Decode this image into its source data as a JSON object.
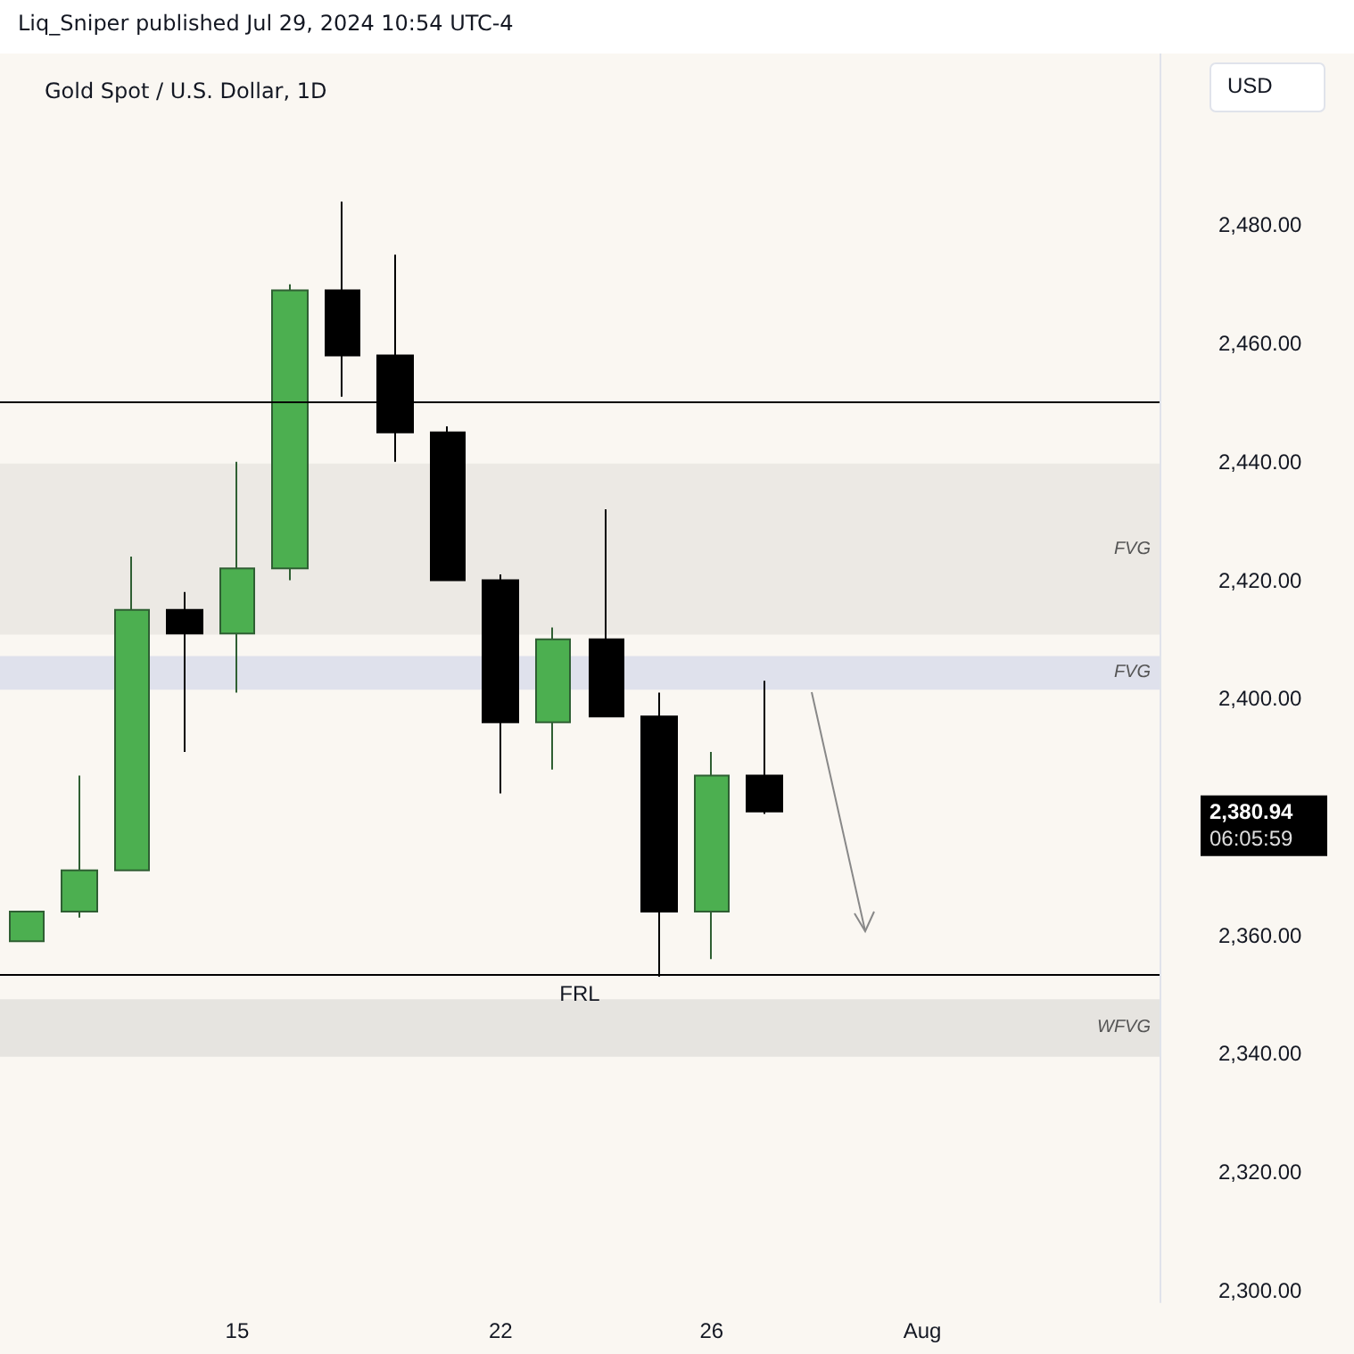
{
  "chart_data": {
    "type": "candlestick",
    "title": "Gold Spot / U.S. Dollar, 1D",
    "categories": [
      null,
      null,
      null,
      null,
      "15",
      null,
      null,
      null,
      null,
      "22",
      null,
      null,
      null,
      "26",
      null,
      null,
      null,
      "Aug",
      null,
      null,
      null,
      null
    ],
    "ohlc": [
      [
        2359,
        2364,
        2359,
        2364
      ],
      [
        2364,
        2387,
        2363,
        2371
      ],
      [
        2371,
        2424,
        2371,
        2415
      ],
      [
        2415,
        2418,
        2391,
        2411
      ],
      [
        2411,
        2440,
        2401,
        2422
      ],
      [
        2422,
        2470,
        2420,
        2469
      ],
      [
        2469,
        2484,
        2451,
        2458
      ],
      [
        2458,
        2475,
        2440,
        2445
      ],
      [
        2445,
        2446,
        2420,
        2420
      ],
      [
        2420,
        2421,
        2384,
        2396
      ],
      [
        2396,
        2412,
        2388,
        2410
      ],
      [
        2410,
        2432,
        2397,
        2397
      ],
      [
        2397,
        2401,
        2353,
        2364
      ],
      [
        2364,
        2391,
        2356,
        2387
      ],
      [
        2387,
        2403,
        2380.5,
        2380.94
      ],
      null,
      null,
      null,
      null,
      null,
      null,
      null
    ],
    "colors": [
      "#4caf50",
      "#4caf50",
      "#4caf50",
      "#000000",
      "#4caf50",
      "#4caf50",
      "#000000",
      "#000000",
      "#000000",
      "#000000",
      "#4caf50",
      "#000000",
      "#000000",
      "#4caf50",
      "#000000",
      null,
      null,
      null,
      null,
      null,
      null,
      null
    ],
    "ylim": [
      2298,
      2509
    ],
    "yticks": [
      {
        "value": 2300,
        "label": "2,300.00"
      },
      {
        "value": 2320,
        "label": "2,320.00"
      },
      {
        "value": 2340,
        "label": "2,340.00"
      },
      {
        "value": 2360,
        "label": "2,360.00"
      },
      {
        "value": 2400,
        "label": "2,400.00"
      },
      {
        "value": 2420,
        "label": "2,420.00"
      },
      {
        "value": 2440,
        "label": "2,440.00"
      },
      {
        "value": 2460,
        "label": "2,460.00"
      },
      {
        "value": 2480,
        "label": "2,480.00"
      }
    ],
    "grid": false,
    "ref_lines": [
      {
        "axis": "y",
        "value": 2450,
        "color": "#000000"
      },
      {
        "axis": "y",
        "value": 2353.4,
        "label": "FRL",
        "color": "#000000"
      }
    ],
    "bands": [
      {
        "axis": "y",
        "from": 2410.8,
        "to": 2439.7,
        "label": "FVG",
        "color": "#ece9e4"
      },
      {
        "axis": "y",
        "from": 2401.5,
        "to": 2407.2,
        "label": "FVG",
        "color": "#dfe1ec"
      },
      {
        "axis": "y",
        "from": 2339.5,
        "to": 2349.2,
        "label": "WFVG",
        "color": "#e6e4e0"
      }
    ],
    "annotations": [
      "Liq_Sniper published Jul 29, 2024 10:54 UTC-4",
      "USD",
      "2,380.94",
      "06:05:59"
    ]
  }
}
